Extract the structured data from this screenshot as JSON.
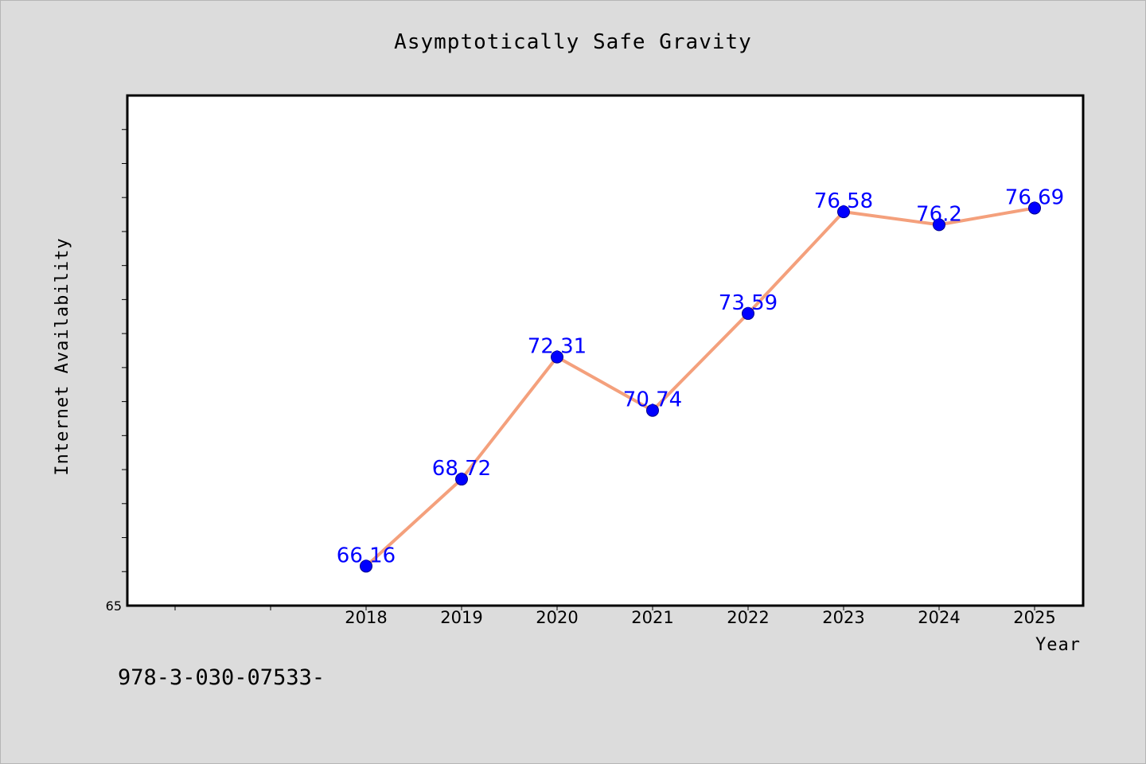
{
  "chart_data": {
    "type": "line",
    "title": "Asymptotically Safe Gravity",
    "xlabel": "Year",
    "ylabel": "Internet Availability",
    "categories": [
      "2018",
      "2019",
      "2020",
      "2021",
      "2022",
      "2023",
      "2024",
      "2025"
    ],
    "series": [
      {
        "values": [
          66.16,
          68.72,
          72.31,
          70.74,
          73.59,
          76.58,
          76.2,
          76.69
        ],
        "labels": [
          "66.16",
          "68.72",
          "72.31",
          "70.74",
          "73.59",
          "76.58",
          "76.2",
          "76.69"
        ],
        "line_color": "#f4a07c",
        "marker_color": "#0000ff"
      }
    ],
    "ylim": [
      65,
      80
    ],
    "y_tick_labels": [
      "65"
    ],
    "x_extra_slots_before": 2,
    "grid": false,
    "legend": "none"
  },
  "footnote": "978-3-030-07533-",
  "colors": {
    "background": "#dcdcdc",
    "plot_area": "#ffffff",
    "axis": "#000000"
  }
}
